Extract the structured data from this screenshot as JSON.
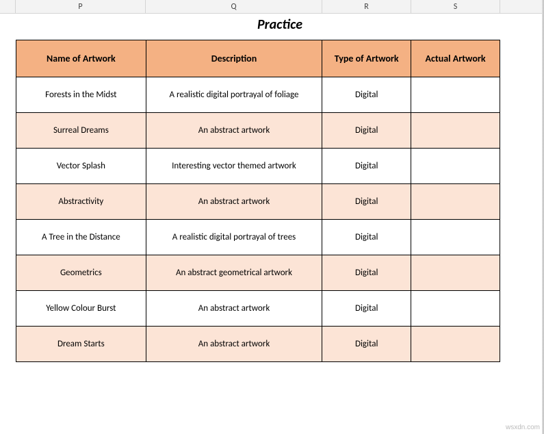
{
  "columns": {
    "p": "P",
    "q": "Q",
    "r": "R",
    "s": "S"
  },
  "title": "Practice",
  "headers": {
    "name": "Name of Artwork",
    "description": "Description",
    "type": "Type of Artwork",
    "actual": "Actual Artwork"
  },
  "rows": [
    {
      "name": "Forests in the Midst",
      "description": "A realistic digital portrayal of  foliage",
      "type": "Digital",
      "actual": "",
      "alt": false
    },
    {
      "name": "Surreal Dreams",
      "description": "An abstract artwork",
      "type": "Digital",
      "actual": "",
      "alt": true
    },
    {
      "name": "Vector Splash",
      "description": "Interesting vector themed artwork",
      "type": "Digital",
      "actual": "",
      "alt": false
    },
    {
      "name": "Abstractivity",
      "description": "An abstract artwork",
      "type": "Digital",
      "actual": "",
      "alt": true
    },
    {
      "name": "A Tree in the Distance",
      "description": "A realistic digital portrayal of trees",
      "type": "Digital",
      "actual": "",
      "alt": false
    },
    {
      "name": "Geometrics",
      "description": "An abstract geometrical artwork",
      "type": "Digital",
      "actual": "",
      "alt": true
    },
    {
      "name": "Yellow Colour Burst",
      "description": "An abstract artwork",
      "type": "Digital",
      "actual": "",
      "alt": false
    },
    {
      "name": "Dream Starts",
      "description": "An abstract artwork",
      "type": "Digital",
      "actual": "",
      "alt": true
    }
  ],
  "styling": {
    "header_bg": "#f4b183",
    "alt_row_bg": "#fce4d6",
    "row_bg": "#ffffff",
    "border_color": "#000000",
    "title_fontsize": 20,
    "header_fontsize": 14,
    "cell_fontsize": 13,
    "col_widths": {
      "name": 190,
      "description": 258,
      "type": 130,
      "actual": 130
    }
  },
  "watermark": "wsxdn.com"
}
